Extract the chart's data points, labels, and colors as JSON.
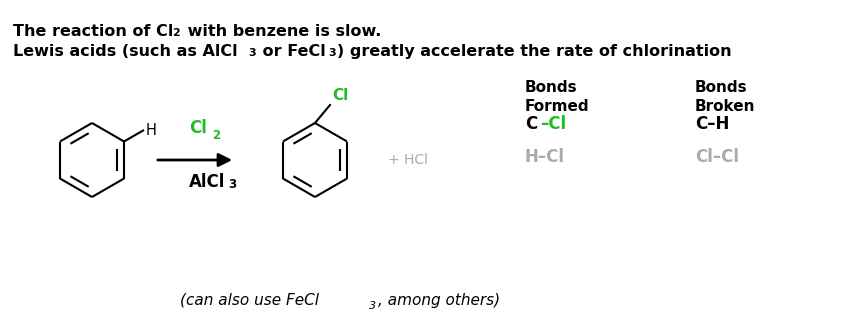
{
  "bg_color": "#ffffff",
  "black_color": "#000000",
  "green_color": "#22bb22",
  "gray_color": "#aaaaaa",
  "title1_bold": "The reaction of Cl",
  "title1_sub": "2",
  "title1_rest": " with benzene is slow.",
  "title2_part1": "Lewis acids (such as AlCl",
  "title2_sub1": "3",
  "title2_part2": " or FeCl",
  "title2_sub2": "3",
  "title2_part3": ") greatly accelerate the rate of chlorination",
  "bonds_formed": "Bonds\nFormed",
  "bonds_broken": "Bonds\nBroken",
  "ccl_c": "C",
  "ccl_dash_cl": "–Cl",
  "ch": "C–H",
  "hcl_gray": "H–Cl",
  "clcl_gray": "Cl–Cl",
  "plus_hcl": "+ HCl",
  "cl2_green": "Cl",
  "cl2_sub": "2",
  "alcl3": "AlCl",
  "alcl3_sub": "3",
  "footer1": "(can also use FeCl",
  "footer_sub": "3",
  "footer2": ", among others)",
  "h_label": "H",
  "cl_label": "Cl"
}
